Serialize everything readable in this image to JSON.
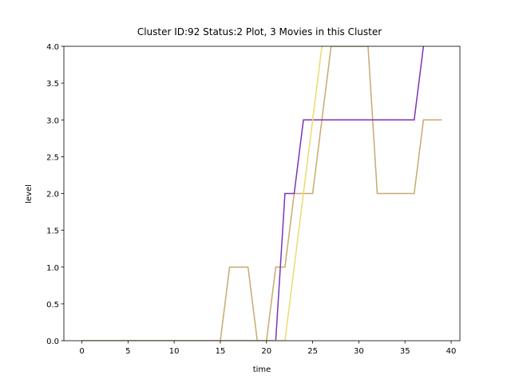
{
  "chart_data": {
    "type": "line",
    "title": "Cluster ID:92 Status:2 Plot, 3 Movies in this Cluster",
    "x_label": "time",
    "y_label": "level",
    "x": [
      0,
      1,
      2,
      3,
      4,
      5,
      6,
      7,
      8,
      9,
      10,
      11,
      12,
      13,
      14,
      15,
      16,
      17,
      18,
      19,
      20,
      21,
      22,
      23,
      24,
      25,
      26,
      27,
      28,
      29,
      30,
      31,
      32,
      33,
      34,
      35,
      36,
      37,
      38,
      39
    ],
    "series": [
      {
        "color": "#c8aa6e",
        "values": [
          0,
          0,
          0,
          0,
          0,
          0,
          0,
          0,
          0,
          0,
          0,
          0,
          0,
          0,
          0,
          0,
          1,
          1,
          1,
          0,
          0,
          1,
          1,
          2,
          2,
          2,
          3,
          4,
          4,
          4,
          4,
          4,
          2,
          2,
          2,
          2,
          2,
          3,
          3,
          3
        ]
      },
      {
        "color": "#7b35b5",
        "values": [
          0,
          0,
          0,
          0,
          0,
          0,
          0,
          0,
          0,
          0,
          0,
          0,
          0,
          0,
          0,
          0,
          0,
          0,
          0,
          0,
          0,
          0,
          2,
          2,
          3,
          3,
          3,
          3,
          3,
          3,
          3,
          3,
          3,
          3,
          3,
          3,
          3,
          4,
          null,
          null
        ]
      },
      {
        "color": "#eadb70",
        "values": [
          0,
          0,
          0,
          0,
          0,
          0,
          0,
          0,
          0,
          0,
          0,
          0,
          0,
          0,
          0,
          0,
          0,
          0,
          0,
          0,
          0,
          0,
          0,
          1,
          2,
          3,
          4,
          null,
          null,
          null,
          null,
          null,
          null,
          null,
          null,
          null,
          null,
          null,
          null,
          null
        ]
      }
    ],
    "xlim": [
      -1.95,
      40.95
    ],
    "ylim": [
      0,
      4
    ],
    "xticks": [
      0,
      5,
      10,
      15,
      20,
      25,
      30,
      35,
      40
    ],
    "yticks": [
      {
        "value": 0,
        "label": "0.0"
      },
      {
        "value": 0.5,
        "label": "0.5"
      },
      {
        "value": 1,
        "label": "1.0"
      },
      {
        "value": 1.5,
        "label": "1.5"
      },
      {
        "value": 2,
        "label": "2.0"
      },
      {
        "value": 2.5,
        "label": "2.5"
      },
      {
        "value": 3,
        "label": "3.0"
      },
      {
        "value": 3.5,
        "label": "3.5"
      },
      {
        "value": 4,
        "label": "4.0"
      }
    ]
  }
}
